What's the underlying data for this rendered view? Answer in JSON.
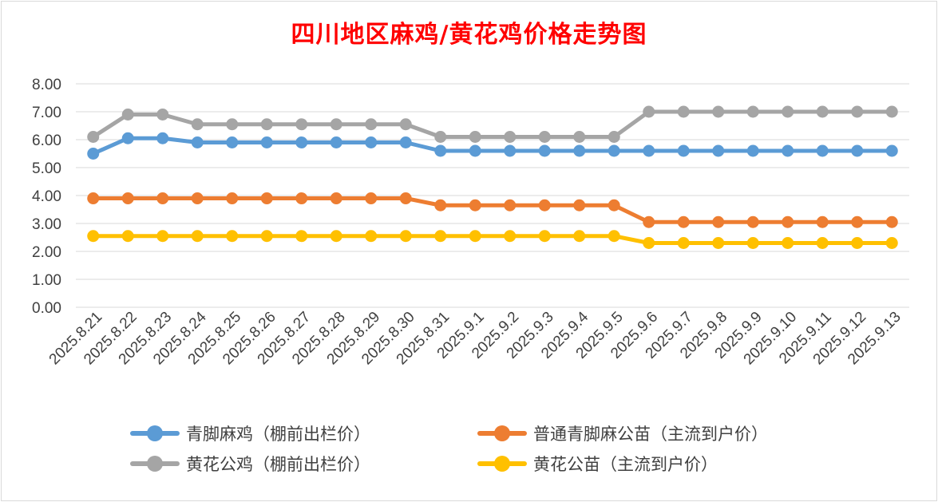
{
  "chart_data": {
    "type": "line",
    "title": "四川地区麻鸡/黄花鸡价格走势图",
    "xlabel": "",
    "ylabel": "",
    "ylim": [
      0,
      8
    ],
    "y_ticks": [
      "0.00",
      "1.00",
      "2.00",
      "3.00",
      "4.00",
      "5.00",
      "6.00",
      "7.00",
      "8.00"
    ],
    "grid": true,
    "legend_position": "bottom",
    "categories": [
      "2025.8.21",
      "2025.8.22",
      "2025.8.23",
      "2025.8.24",
      "2025.8.25",
      "2025.8.26",
      "2025.8.27",
      "2025.8.28",
      "2025.8.29",
      "2025.8.30",
      "2025.8.31",
      "2025.9.1",
      "2025.9.2",
      "2025.9.3",
      "2025.9.4",
      "2025.9.5",
      "2025.9.6",
      "2025.9.7",
      "2025.9.8",
      "2025.9.9",
      "2025.9.10",
      "2025.9.11",
      "2025.9.12",
      "2025.9.13"
    ],
    "series": [
      {
        "name": "青脚麻鸡（棚前出栏价）",
        "color": "#5b9bd5",
        "values": [
          5.5,
          6.05,
          6.05,
          5.9,
          5.9,
          5.9,
          5.9,
          5.9,
          5.9,
          5.9,
          5.6,
          5.6,
          5.6,
          5.6,
          5.6,
          5.6,
          5.6,
          5.6,
          5.6,
          5.6,
          5.6,
          5.6,
          5.6,
          5.6
        ]
      },
      {
        "name": "普通青脚麻公苗（主流到户价）",
        "color": "#ed7d31",
        "values": [
          3.9,
          3.9,
          3.9,
          3.9,
          3.9,
          3.9,
          3.9,
          3.9,
          3.9,
          3.9,
          3.65,
          3.65,
          3.65,
          3.65,
          3.65,
          3.65,
          3.05,
          3.05,
          3.05,
          3.05,
          3.05,
          3.05,
          3.05,
          3.05
        ]
      },
      {
        "name": "黄花公鸡（棚前出栏价）",
        "color": "#a5a5a5",
        "values": [
          6.1,
          6.9,
          6.9,
          6.55,
          6.55,
          6.55,
          6.55,
          6.55,
          6.55,
          6.55,
          6.1,
          6.1,
          6.1,
          6.1,
          6.1,
          6.1,
          7.0,
          7.0,
          7.0,
          7.0,
          7.0,
          7.0,
          7.0,
          7.0
        ]
      },
      {
        "name": "黄花公苗（主流到户价）",
        "color": "#ffc000",
        "values": [
          2.55,
          2.55,
          2.55,
          2.55,
          2.55,
          2.55,
          2.55,
          2.55,
          2.55,
          2.55,
          2.55,
          2.55,
          2.55,
          2.55,
          2.55,
          2.55,
          2.3,
          2.3,
          2.3,
          2.3,
          2.3,
          2.3,
          2.3,
          2.3
        ]
      }
    ]
  }
}
